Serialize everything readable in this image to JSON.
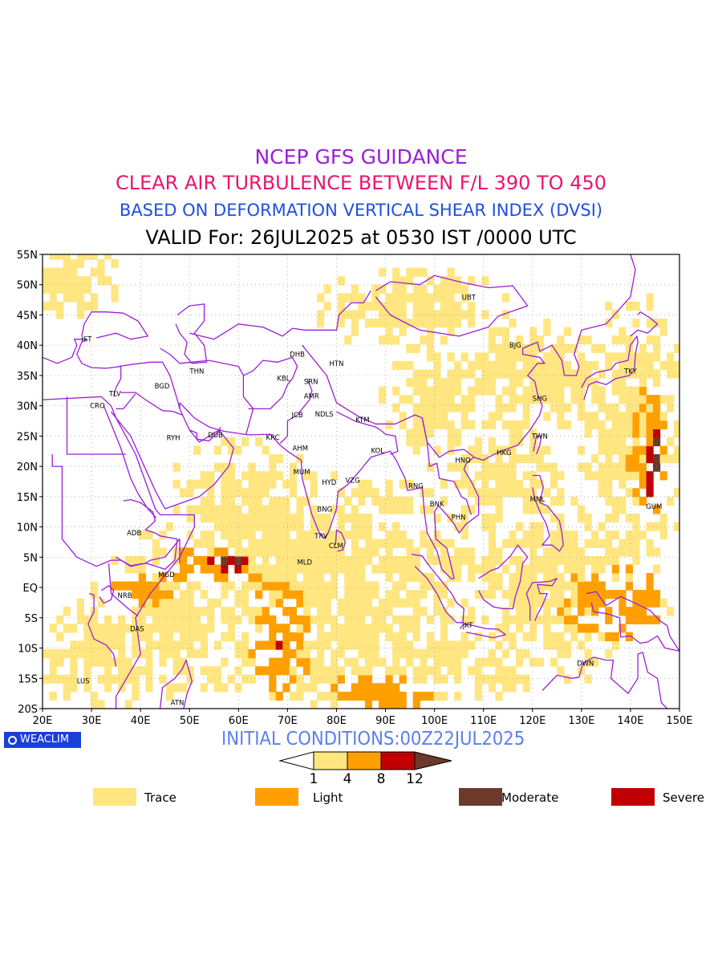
{
  "titles": {
    "line1": "NCEP GFS GUIDANCE",
    "line2": "CLEAR AIR TURBULENCE BETWEEN F/L 390 TO 450",
    "line3": "BASED ON DEFORMATION VERTICAL SHEAR INDEX (DVSI)",
    "line4": "VALID For: 26JUL2025 at 0530 IST /0000 UTC"
  },
  "axes": {
    "lat_labels": [
      "55N",
      "50N",
      "45N",
      "40N",
      "35N",
      "30N",
      "25N",
      "20N",
      "15N",
      "10N",
      "5N",
      "EQ",
      "5S",
      "10S",
      "15S",
      "20S"
    ],
    "lon_labels": [
      "20E",
      "30E",
      "40E",
      "50E",
      "60E",
      "70E",
      "80E",
      "90E",
      "100E",
      "110E",
      "120E",
      "130E",
      "140E",
      "150E"
    ]
  },
  "cities": [
    {
      "code": "UBT",
      "lon": 107,
      "lat": 47.9
    },
    {
      "code": "BJG",
      "lon": 116.5,
      "lat": 40
    },
    {
      "code": "TKY",
      "lon": 140,
      "lat": 35.7
    },
    {
      "code": "IST",
      "lon": 29,
      "lat": 41
    },
    {
      "code": "DHB",
      "lon": 72,
      "lat": 38.5
    },
    {
      "code": "HTN",
      "lon": 80,
      "lat": 37
    },
    {
      "code": "THN",
      "lon": 51.5,
      "lat": 35.7
    },
    {
      "code": "KBL",
      "lon": 69.2,
      "lat": 34.5
    },
    {
      "code": "SRN",
      "lon": 74.8,
      "lat": 34
    },
    {
      "code": "TLV",
      "lon": 34.8,
      "lat": 32
    },
    {
      "code": "BGD",
      "lon": 44.4,
      "lat": 33.3
    },
    {
      "code": "AMR",
      "lon": 74.9,
      "lat": 31.6
    },
    {
      "code": "SHG",
      "lon": 121.5,
      "lat": 31.2
    },
    {
      "code": "CRO",
      "lon": 31.2,
      "lat": 30
    },
    {
      "code": "JCB",
      "lon": 72,
      "lat": 28.5
    },
    {
      "code": "NDLS",
      "lon": 77.5,
      "lat": 28.6
    },
    {
      "code": "KTM",
      "lon": 85.3,
      "lat": 27.7
    },
    {
      "code": "RYH",
      "lon": 46.7,
      "lat": 24.7
    },
    {
      "code": "DUB",
      "lon": 55.3,
      "lat": 25.2
    },
    {
      "code": "KRC",
      "lon": 67,
      "lat": 24.8
    },
    {
      "code": "TWN",
      "lon": 121.5,
      "lat": 25
    },
    {
      "code": "AHM",
      "lon": 72.6,
      "lat": 23
    },
    {
      "code": "KOL",
      "lon": 88.4,
      "lat": 22.6
    },
    {
      "code": "HKG",
      "lon": 114.2,
      "lat": 22.3
    },
    {
      "code": "HNO",
      "lon": 105.8,
      "lat": 21
    },
    {
      "code": "MUM",
      "lon": 72.9,
      "lat": 19.1
    },
    {
      "code": "HYD",
      "lon": 78.5,
      "lat": 17.4
    },
    {
      "code": "VZG",
      "lon": 83.3,
      "lat": 17.7
    },
    {
      "code": "RNG",
      "lon": 96.2,
      "lat": 16.8
    },
    {
      "code": "MNL",
      "lon": 121,
      "lat": 14.6
    },
    {
      "code": "BNK",
      "lon": 100.5,
      "lat": 13.8
    },
    {
      "code": "GUM",
      "lon": 144.8,
      "lat": 13.4
    },
    {
      "code": "BNG",
      "lon": 77.6,
      "lat": 12.9
    },
    {
      "code": "PHN",
      "lon": 104.9,
      "lat": 11.6
    },
    {
      "code": "ADB",
      "lon": 38.7,
      "lat": 9
    },
    {
      "code": "TRV",
      "lon": 76.9,
      "lat": 8.5
    },
    {
      "code": "CLM",
      "lon": 79.9,
      "lat": 6.9
    },
    {
      "code": "MLD",
      "lon": 73.5,
      "lat": 4.2
    },
    {
      "code": "MGD",
      "lon": 45.3,
      "lat": 2.1
    },
    {
      "code": "NRB",
      "lon": 36.8,
      "lat": -1.3
    },
    {
      "code": "DAS",
      "lon": 39.3,
      "lat": -6.8
    },
    {
      "code": "JKT",
      "lon": 106.8,
      "lat": -6.2
    },
    {
      "code": "DWN",
      "lon": 130.8,
      "lat": -12.5
    },
    {
      "code": "LUS",
      "lon": 28.3,
      "lat": -15.4
    },
    {
      "code": "ATN",
      "lon": 47.5,
      "lat": -19
    }
  ],
  "initial_conditions": "INITIAL CONDITIONS:00Z22JUL2025",
  "logo_text": "WEACLIM",
  "colorbar": {
    "ticks": [
      "1",
      "4",
      "8",
      "12"
    ],
    "colors": [
      "#ffe680",
      "#ffa000",
      "#c00000",
      "#6b3a2a"
    ]
  },
  "legend": [
    {
      "label": "Trace",
      "color": "#ffe680"
    },
    {
      "label": "Light",
      "color": "#ffa000"
    },
    {
      "label": "Moderate",
      "color": "#6b3a2a"
    },
    {
      "label": "Severe",
      "color": "#c00000"
    }
  ],
  "colors": {
    "coastline": "#9a1fd6",
    "grid": "#999999"
  }
}
